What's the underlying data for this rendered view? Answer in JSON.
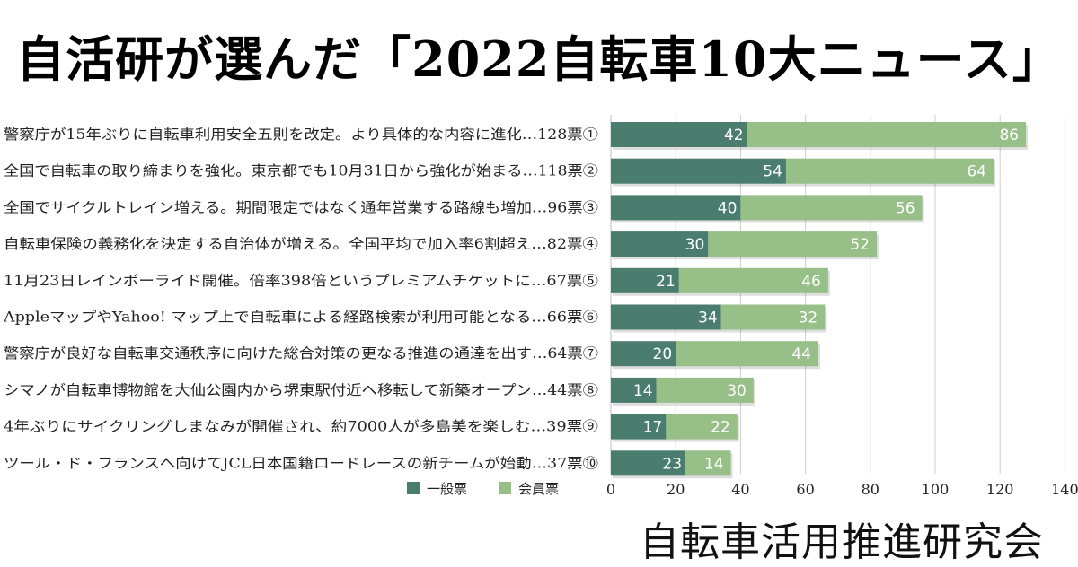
{
  "header": {
    "title": "自活研が選んだ「2022自転車10大ニュース」"
  },
  "footer": {
    "org": "自転車活用推進研究会"
  },
  "colors": {
    "general": "#4a7d6d",
    "member": "#97bf88",
    "grid": "#cfcfcf",
    "axis": "#bdbdbd"
  },
  "chart_data": {
    "type": "bar",
    "orientation": "horizontal",
    "stacked": true,
    "categories": [
      "警察庁が15年ぶりに自転車利用安全五則を改定。より具体的な内容に進化…128票①",
      "全国で自転車の取り締まりを強化。東京都でも10月31日から強化が始まる…118票②",
      "全国でサイクルトレイン増える。期間限定ではなく通年営業する路線も増加…96票③",
      "自転車保険の義務化を決定する自治体が増える。全国平均で加入率6割超え…82票④",
      "11月23日レインボーライド開催。倍率398倍というプレミアムチケットに…67票⑤",
      "AppleマップやYahoo! マップ上で自転車による経路検索が利用可能となる…66票⑥",
      "警察庁が良好な自転車交通秩序に向けた総合対策の更なる推進の通達を出す…64票⑦",
      "シマノが自転車博物館を大仙公園内から堺東駅付近へ移転して新築オープン…44票⑧",
      "4年ぶりにサイクリングしまなみが開催され、約7000人が多島美を楽しむ…39票⑨",
      "ツール・ド・フランスへ向けてJCL日本国籍ロードレースの新チームが始動…37票⑩"
    ],
    "series": [
      {
        "name": "一般票",
        "values": [
          42,
          54,
          40,
          30,
          21,
          34,
          20,
          14,
          17,
          23
        ]
      },
      {
        "name": "会員票",
        "values": [
          86,
          64,
          56,
          52,
          46,
          32,
          44,
          30,
          22,
          14
        ]
      }
    ],
    "xlim": [
      0,
      140
    ],
    "xticks": [
      0,
      20,
      40,
      60,
      80,
      100,
      120,
      140
    ],
    "grid": true,
    "legend": "bottom-left"
  }
}
